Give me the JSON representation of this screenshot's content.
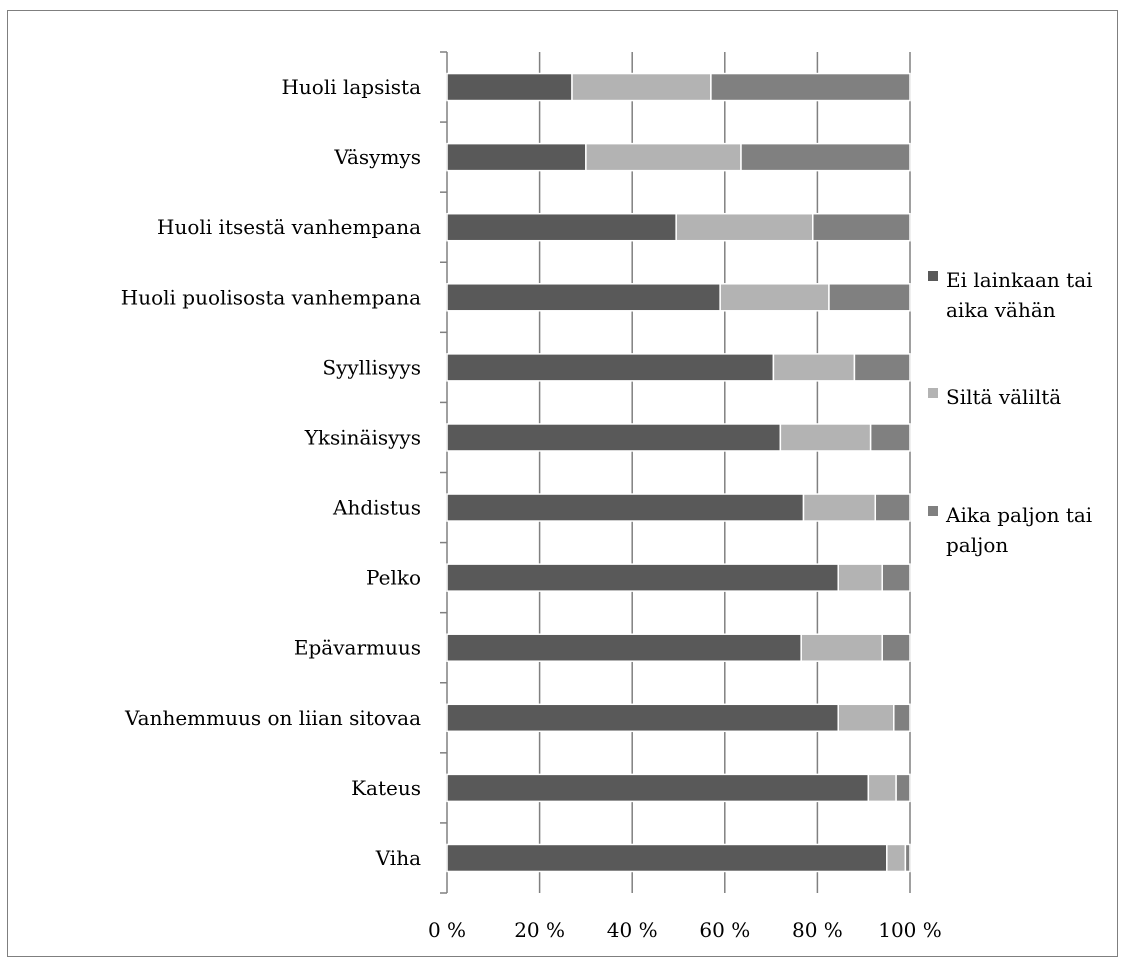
{
  "chart_data": {
    "type": "bar",
    "orientation": "horizontal",
    "stacked": "percent",
    "categories": [
      "Huoli lapsista",
      "Väsymys",
      "Huoli itsestä vanhempana",
      "Huoli puolisosta vanhempana",
      "Syyllisyys",
      "Yksinäisyys",
      "Ahdistus",
      "Pelko",
      "Epävarmuus",
      "Vanhemmuus on liian sitovaa",
      "Kateus",
      "Viha"
    ],
    "series": [
      {
        "name": [
          "Ei lainkaan tai",
          "aika vähän"
        ],
        "color": "#595959",
        "values": [
          27,
          30,
          49.5,
          59,
          70.5,
          72,
          77,
          84.5,
          76.5,
          84.5,
          91,
          95
        ]
      },
      {
        "name": [
          "Siltä väliltä"
        ],
        "color": "#b3b3b3",
        "values": [
          30,
          33.5,
          29.5,
          23.5,
          17.5,
          19.5,
          15.5,
          9.5,
          17.5,
          12,
          6,
          4
        ]
      },
      {
        "name": [
          "Aika paljon tai",
          "paljon"
        ],
        "color": "#808080",
        "values": [
          43,
          36.5,
          21,
          17.5,
          12,
          8.5,
          7.5,
          6,
          6,
          3.5,
          3,
          1
        ]
      }
    ],
    "x_ticks": [
      "0 %",
      "20 %",
      "40 %",
      "60 %",
      "80 %",
      "100 %"
    ],
    "xlim": [
      0,
      100
    ],
    "grid": "vertical",
    "legend": "right"
  }
}
